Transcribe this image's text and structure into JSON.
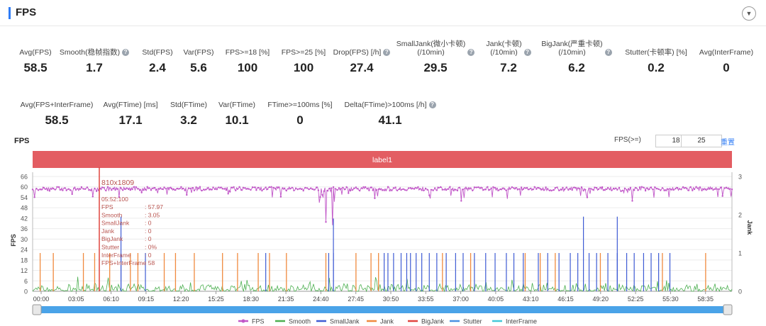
{
  "section": {
    "title": "FPS",
    "collapse_icon": "chevron-down-icon"
  },
  "metrics_row1": [
    {
      "label": "Avg(FPS)",
      "value": "58.5",
      "help": false
    },
    {
      "label": "Smooth(稳帧指数)",
      "value": "1.7",
      "help": true
    },
    {
      "label": "Std(FPS)",
      "value": "2.4",
      "help": false
    },
    {
      "label": "Var(FPS)",
      "value": "5.6",
      "help": false
    },
    {
      "label": "FPS>=18 [%]",
      "value": "100",
      "help": false
    },
    {
      "label": "FPS>=25 [%]",
      "value": "100",
      "help": false
    },
    {
      "label": "Drop(FPS) [/h]",
      "value": "27.4",
      "help": true
    },
    {
      "label": "SmallJank(微小卡顿)\n(/10min)",
      "value": "29.5",
      "help": true
    },
    {
      "label": "Jank(卡顿)\n(/10min)",
      "value": "7.2",
      "help": true
    },
    {
      "label": "BigJank(严重卡顿)\n(/10min)",
      "value": "6.2",
      "help": true
    },
    {
      "label": "Stutter(卡顿率) [%]",
      "value": "0.2",
      "help": false
    },
    {
      "label": "Avg(InterFrame)",
      "value": "0",
      "help": false
    }
  ],
  "metrics_row2": [
    {
      "label": "Avg(FPS+InterFrame)",
      "value": "58.5",
      "help": false
    },
    {
      "label": "Avg(FTime) [ms]",
      "value": "17.1",
      "help": false
    },
    {
      "label": "Std(FTime)",
      "value": "3.2",
      "help": false
    },
    {
      "label": "Var(FTime)",
      "value": "10.1",
      "help": false
    },
    {
      "label": "FTime>=100ms [%]",
      "value": "0",
      "help": false
    },
    {
      "label": "Delta(FTime)>100ms [/h]",
      "value": "41.1",
      "help": true
    }
  ],
  "chart_header": {
    "title": "FPS",
    "threshold_label": "FPS(>=)",
    "threshold_1": "18",
    "threshold_2": "25",
    "reset_label": "重置"
  },
  "chart_data": {
    "type": "line",
    "label_band": "label1",
    "ylabel": "FPS",
    "y2label": "Jank",
    "ylim": [
      0,
      66
    ],
    "yticks": [
      0,
      6,
      12,
      18,
      24,
      30,
      36,
      42,
      48,
      54,
      60,
      66
    ],
    "y2lim": [
      0,
      3
    ],
    "y2ticks": [
      0,
      1,
      2,
      3
    ],
    "xticks": [
      "00:00",
      "03:05",
      "06:10",
      "09:15",
      "12:20",
      "15:25",
      "18:30",
      "21:35",
      "24:40",
      "27:45",
      "30:50",
      "33:55",
      "37:00",
      "40:05",
      "43:10",
      "46:15",
      "49:20",
      "52:25",
      "55:30",
      "58:35"
    ],
    "duration_sec": 3720,
    "fps_baseline": 58.5,
    "fps_dips": [
      {
        "t": 1560,
        "value": 40
      },
      {
        "t": 1595,
        "value": 38
      },
      {
        "t": 2280,
        "value": 52
      },
      {
        "t": 2950,
        "value": 54
      },
      {
        "t": 3190,
        "value": 52
      }
    ],
    "series": [
      {
        "name": "FPS",
        "color": "#c157c8"
      },
      {
        "name": "Smooth",
        "color": "#4caf50"
      },
      {
        "name": "SmallJank",
        "color": "#3e5bd4"
      },
      {
        "name": "Jank",
        "color": "#f08a3e"
      },
      {
        "name": "BigJank",
        "color": "#e0453f"
      },
      {
        "name": "Stutter",
        "color": "#4a90e2"
      },
      {
        "name": "InterFrame",
        "color": "#45c8d8"
      }
    ],
    "jank_markers": {
      "smalljank_times": [
        470,
        600,
        1240,
        1575,
        1600,
        1870,
        1890,
        1920,
        1960,
        1990,
        2010,
        2040,
        2070,
        2110,
        2150,
        2200,
        2250,
        2290,
        2350,
        2410,
        2460,
        2520,
        2560,
        2610,
        2690,
        2740,
        2800,
        2860,
        2900,
        2960,
        3000,
        3060,
        3110,
        3160,
        3200,
        3250,
        3290,
        3330,
        3390
      ],
      "smalljank_level": 1,
      "tall_smalljank": [
        {
          "t": 470,
          "value": 1.95
        },
        {
          "t": 1600,
          "value": 1.9
        },
        {
          "t": 2930,
          "value": 1.95
        },
        {
          "t": 3110,
          "value": 1.95
        }
      ],
      "jank_times": [
        40,
        110,
        270,
        330,
        410,
        520,
        560,
        700,
        760,
        860,
        1010,
        1090,
        1200,
        1260,
        1350,
        1560,
        1720,
        1800,
        1840,
        2180,
        2330,
        2620,
        2700,
        2780,
        3020,
        3350,
        3580
      ],
      "jank_level": 1
    },
    "tooltip": {
      "header": "810x1809",
      "time": "05:52:100",
      "rows": [
        {
          "k": "FPS",
          "v": ": 57.97"
        },
        {
          "k": "Smooth",
          "v": ": 3.05"
        },
        {
          "k": "SmallJank",
          "v": ": 0"
        },
        {
          "k": "Jank",
          "v": ": 0"
        },
        {
          "k": "BigJank",
          "v": ": 0"
        },
        {
          "k": "Stutter",
          "v": ": 0%"
        },
        {
          "k": "InterFrame",
          "v": ": 0"
        },
        {
          "k": "FPS+InterFrame",
          "v": ": 58"
        }
      ]
    }
  }
}
